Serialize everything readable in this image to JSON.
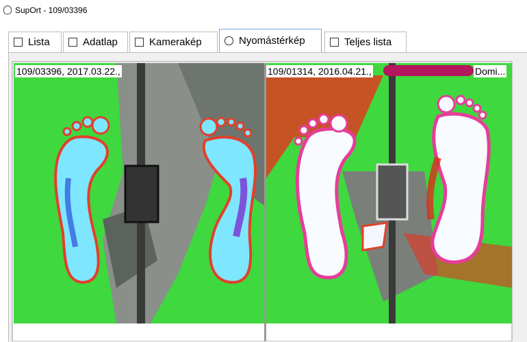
{
  "window": {
    "title": "SupOrt - 109/03396"
  },
  "tabs": [
    "Lista",
    "Adatlap",
    "Kamerakép",
    "Nyomástérkép",
    "Teljes lista"
  ],
  "panels": [
    {
      "caption": "109/03396, 2017.03.22.,"
    },
    {
      "caption": "109/01314, 2016.04.21.,",
      "caption_end": "Domi..."
    }
  ]
}
